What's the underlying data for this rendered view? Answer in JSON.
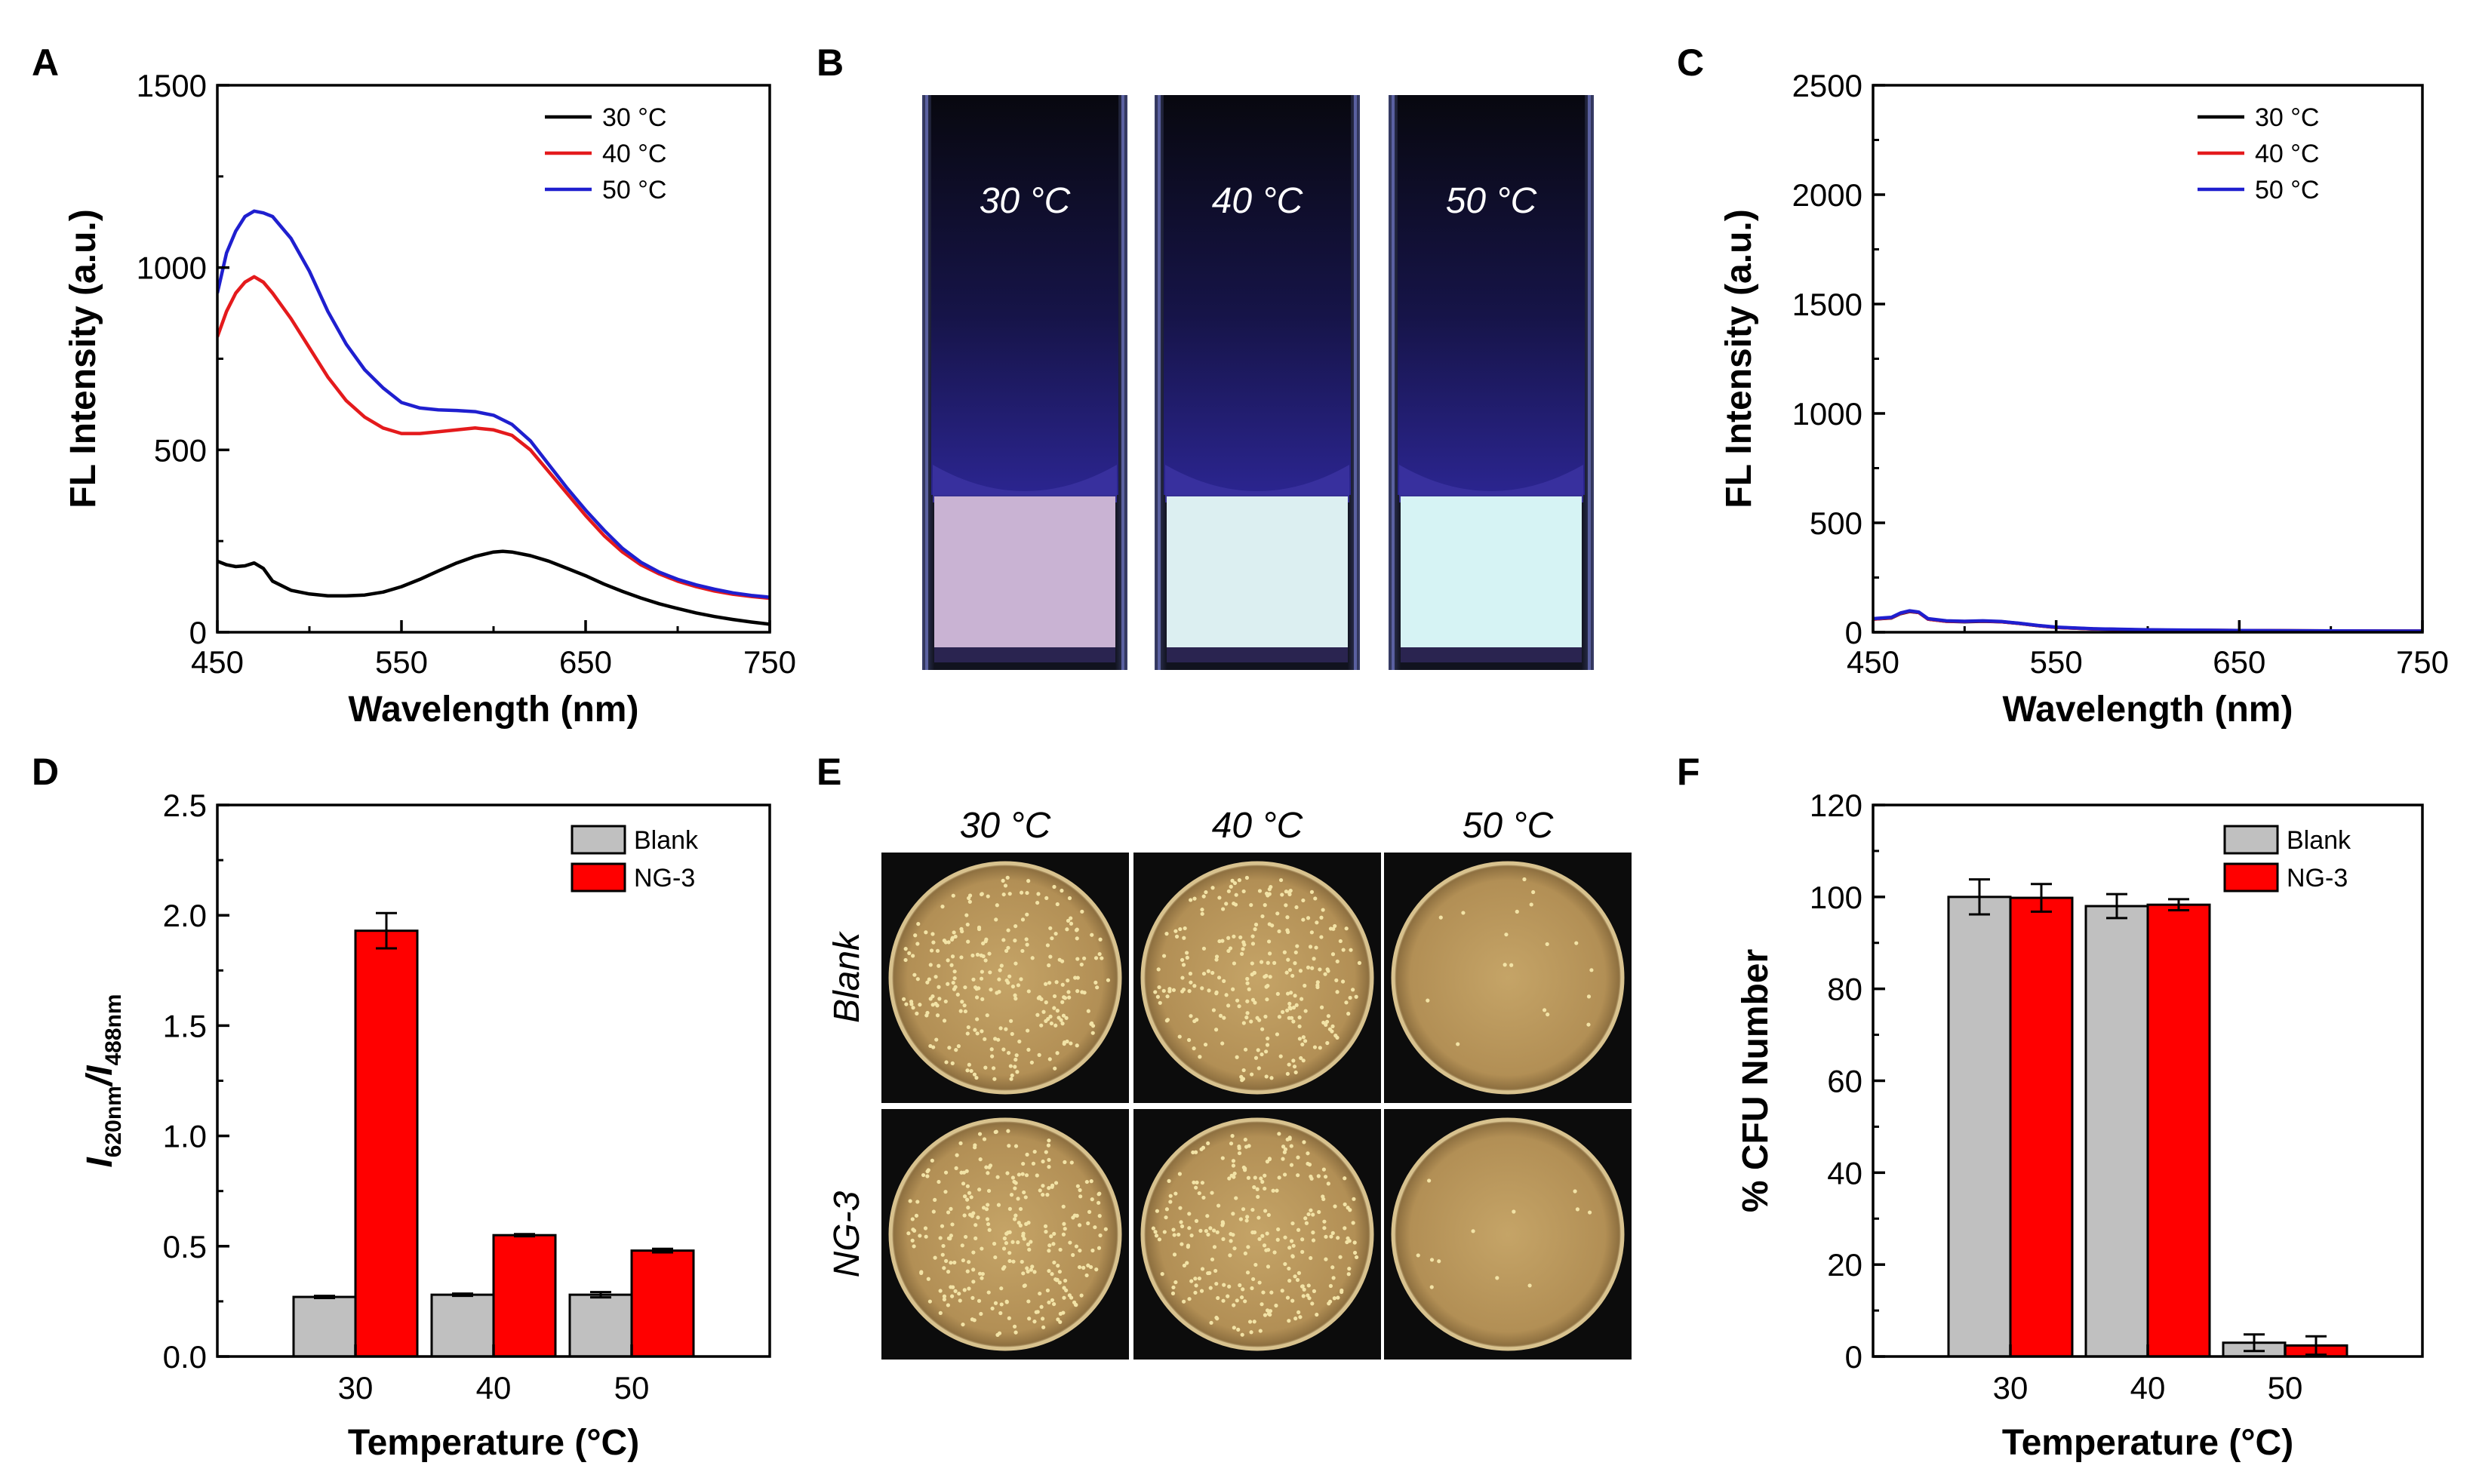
{
  "panels": {
    "A": {
      "letter": "A"
    },
    "B": {
      "letter": "B"
    },
    "C": {
      "letter": "C"
    },
    "D": {
      "letter": "D"
    },
    "E": {
      "letter": "E"
    },
    "F": {
      "letter": "F"
    }
  },
  "colors": {
    "black": "#000000",
    "red": "#e41a1c",
    "blue": "#1f1fcf",
    "grey_bar": "#c0c0c0",
    "red_bar": "#ff0000"
  },
  "photo_B": {
    "labels": [
      "30 °C",
      "40 °C",
      "50 °C"
    ],
    "solution_colors": [
      "#c9b3d3",
      "#dceff1",
      "#d6f3f4"
    ]
  },
  "photo_E": {
    "col_labels": [
      "30 °C",
      "40 °C",
      "50 °C"
    ],
    "row_labels": [
      "Blank",
      "NG-3"
    ],
    "colony_density": [
      [
        260,
        260,
        18
      ],
      [
        280,
        270,
        12
      ]
    ]
  },
  "chart_data": [
    {
      "id": "A",
      "type": "line",
      "xlabel": "Wavelength (nm)",
      "ylabel": "FL Intensity (a.u.)",
      "xlim": [
        450,
        750
      ],
      "ylim": [
        0,
        1500
      ],
      "xticks": [
        450,
        550,
        650,
        750
      ],
      "yticks": [
        0,
        500,
        1000,
        1500
      ],
      "legend": "top-right",
      "series": [
        {
          "name": "30 °C",
          "color": "#000000",
          "x": [
            450,
            455,
            460,
            465,
            470,
            475,
            480,
            490,
            500,
            510,
            520,
            530,
            540,
            550,
            560,
            570,
            580,
            590,
            600,
            605,
            610,
            620,
            630,
            640,
            650,
            660,
            670,
            680,
            690,
            700,
            710,
            720,
            730,
            740,
            750
          ],
          "y": [
            195,
            185,
            180,
            182,
            190,
            175,
            140,
            115,
            105,
            100,
            100,
            102,
            110,
            125,
            145,
            168,
            190,
            208,
            220,
            222,
            220,
            210,
            195,
            175,
            155,
            132,
            112,
            94,
            78,
            65,
            53,
            43,
            35,
            28,
            22
          ]
        },
        {
          "name": "40 °C",
          "color": "#e41a1c",
          "x": [
            450,
            455,
            460,
            465,
            470,
            475,
            480,
            490,
            500,
            510,
            520,
            530,
            540,
            550,
            560,
            570,
            580,
            590,
            600,
            610,
            620,
            630,
            640,
            650,
            660,
            670,
            680,
            690,
            700,
            710,
            720,
            730,
            740,
            750
          ],
          "y": [
            810,
            880,
            930,
            960,
            975,
            960,
            930,
            860,
            780,
            700,
            635,
            590,
            560,
            545,
            545,
            550,
            555,
            560,
            555,
            540,
            500,
            440,
            380,
            320,
            265,
            220,
            185,
            160,
            140,
            125,
            113,
            104,
            98,
            93
          ]
        },
        {
          "name": "50 °C",
          "color": "#1f1fcf",
          "x": [
            450,
            455,
            460,
            465,
            470,
            475,
            480,
            490,
            500,
            510,
            520,
            530,
            540,
            550,
            560,
            570,
            580,
            590,
            600,
            610,
            620,
            630,
            640,
            650,
            660,
            670,
            680,
            690,
            700,
            710,
            720,
            730,
            740,
            750
          ],
          "y": [
            930,
            1040,
            1100,
            1140,
            1155,
            1150,
            1140,
            1080,
            990,
            880,
            790,
            720,
            670,
            630,
            615,
            610,
            608,
            605,
            595,
            570,
            525,
            460,
            395,
            335,
            280,
            230,
            192,
            165,
            145,
            130,
            118,
            108,
            101,
            96
          ]
        }
      ]
    },
    {
      "id": "C",
      "type": "line",
      "xlabel": "Wavelength (nm)",
      "ylabel": "FL Intensity (a.u.)",
      "xlim": [
        450,
        750
      ],
      "ylim": [
        0,
        2500
      ],
      "xticks": [
        450,
        550,
        650,
        750
      ],
      "yticks": [
        0,
        500,
        1000,
        1500,
        2000,
        2500
      ],
      "legend": "top-right",
      "series": [
        {
          "name": "30 °C",
          "color": "#000000",
          "x": [
            450,
            460,
            465,
            470,
            475,
            480,
            490,
            500,
            510,
            520,
            530,
            540,
            550,
            570,
            600,
            650,
            700,
            750
          ],
          "y": [
            60,
            65,
            85,
            95,
            90,
            60,
            50,
            48,
            50,
            48,
            40,
            30,
            22,
            15,
            10,
            8,
            6,
            5
          ]
        },
        {
          "name": "40 °C",
          "color": "#e41a1c",
          "x": [
            450,
            460,
            465,
            470,
            475,
            480,
            490,
            500,
            510,
            520,
            530,
            540,
            550,
            570,
            600,
            650,
            700,
            750
          ],
          "y": [
            60,
            66,
            86,
            96,
            90,
            60,
            50,
            49,
            51,
            48,
            40,
            30,
            22,
            15,
            10,
            8,
            6,
            5
          ]
        },
        {
          "name": "50 °C",
          "color": "#1f1fcf",
          "x": [
            450,
            460,
            465,
            470,
            475,
            480,
            490,
            500,
            510,
            520,
            530,
            540,
            550,
            570,
            600,
            650,
            700,
            750
          ],
          "y": [
            62,
            68,
            88,
            98,
            92,
            62,
            52,
            50,
            52,
            49,
            41,
            31,
            23,
            16,
            11,
            8,
            6,
            5
          ]
        }
      ]
    },
    {
      "id": "D",
      "type": "bar",
      "xlabel": "Temperature (°C)",
      "ylabel_parts": [
        "I",
        "620nm",
        "/I",
        "488nm"
      ],
      "categories": [
        "30",
        "40",
        "50"
      ],
      "ylim": [
        0,
        2.5
      ],
      "yticks": [
        "0.0",
        "0.5",
        "1.0",
        "1.5",
        "2.0",
        "2.5"
      ],
      "legend": "top-right",
      "series": [
        {
          "name": "Blank",
          "color": "#c0c0c0",
          "values": [
            0.27,
            0.28,
            0.28
          ],
          "errors": [
            0.005,
            0.005,
            0.012
          ]
        },
        {
          "name": "NG-3",
          "color": "#ff0000",
          "values": [
            1.93,
            0.55,
            0.48
          ],
          "errors": [
            0.08,
            0.005,
            0.008
          ]
        }
      ]
    },
    {
      "id": "F",
      "type": "bar",
      "xlabel": "Temperature (°C)",
      "ylabel": "% CFU Number",
      "categories": [
        "30",
        "40",
        "50"
      ],
      "ylim": [
        0,
        120
      ],
      "yticks": [
        "0",
        "20",
        "40",
        "60",
        "80",
        "100",
        "120"
      ],
      "legend": "top-right",
      "series": [
        {
          "name": "Blank",
          "color": "#c0c0c0",
          "values": [
            100,
            98,
            3
          ],
          "errors": [
            3.8,
            2.6,
            1.8
          ]
        },
        {
          "name": "NG-3",
          "color": "#ff0000",
          "values": [
            99.8,
            98.3,
            2.4
          ],
          "errors": [
            3.0,
            1.2,
            2.0
          ]
        }
      ]
    }
  ]
}
